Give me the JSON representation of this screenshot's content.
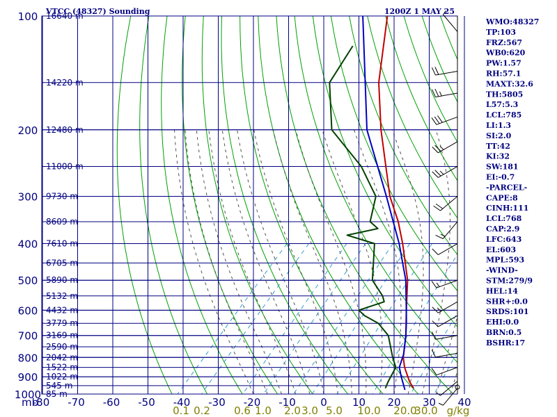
{
  "header": {
    "station": "VTCC (48327) Sounding",
    "datetime": "1200Z  1 MAY 25"
  },
  "chart_data": {
    "type": "skew-t",
    "pressure_unit_label": "mb",
    "pressure_levels": [
      100,
      200,
      300,
      400,
      500,
      600,
      700,
      800,
      900,
      1000
    ],
    "pressure_range": [
      100,
      1000
    ],
    "temperature_ticks": [
      -80,
      -70,
      -60,
      -50,
      -40,
      -30,
      -20,
      -10,
      0,
      10,
      20,
      30,
      40
    ],
    "mixing_ratio_labels": [
      "0.1",
      "0.2",
      "0.6",
      "1.0",
      "2.0",
      "3.0",
      "5.0",
      "10.0",
      "20.0",
      "30.0"
    ],
    "mixing_ratio_unit": "g/kg",
    "height_labels": [
      {
        "p": 100,
        "h": "16640 m"
      },
      {
        "p": 150,
        "h": "14220 m"
      },
      {
        "p": 200,
        "h": "12480 m"
      },
      {
        "p": 250,
        "h": "11000 m"
      },
      {
        "p": 300,
        "h": "9730 m"
      },
      {
        "p": 350,
        "h": "8609 m"
      },
      {
        "p": 400,
        "h": "7610 m"
      },
      {
        "p": 450,
        "h": "6705 m"
      },
      {
        "p": 500,
        "h": "5890 m"
      },
      {
        "p": 550,
        "h": "5132 m"
      },
      {
        "p": 600,
        "h": "4432 m"
      },
      {
        "p": 650,
        "h": "3779 m"
      },
      {
        "p": 700,
        "h": "3169 m"
      },
      {
        "p": 750,
        "h": "2590 m"
      },
      {
        "p": 800,
        "h": "2042 m"
      },
      {
        "p": 850,
        "h": "1522 m"
      },
      {
        "p": 900,
        "h": "1022 m"
      },
      {
        "p": 950,
        "h": "545 m"
      },
      {
        "p": 1000,
        "h": "85 m"
      }
    ],
    "series": [
      {
        "name": "temperature",
        "color": "#c00000",
        "points": [
          [
            965,
            24
          ],
          [
            925,
            21
          ],
          [
            850,
            16
          ],
          [
            800,
            13
          ],
          [
            700,
            8
          ],
          [
            600,
            1.5
          ],
          [
            500,
            -6
          ],
          [
            400,
            -17
          ],
          [
            350,
            -24
          ],
          [
            300,
            -33
          ],
          [
            250,
            -42
          ],
          [
            200,
            -53
          ],
          [
            150,
            -66
          ],
          [
            100,
            -81
          ]
        ]
      },
      {
        "name": "dewpoint",
        "color": "#004000",
        "points": [
          [
            965,
            16
          ],
          [
            925,
            15
          ],
          [
            850,
            13.5
          ],
          [
            800,
            10
          ],
          [
            700,
            3
          ],
          [
            650,
            -3
          ],
          [
            620,
            -9
          ],
          [
            600,
            -12
          ],
          [
            570,
            -7
          ],
          [
            550,
            -9
          ],
          [
            500,
            -16
          ],
          [
            400,
            -25
          ],
          [
            380,
            -35
          ],
          [
            365,
            -28
          ],
          [
            350,
            -32
          ],
          [
            300,
            -37
          ],
          [
            250,
            -49
          ],
          [
            200,
            -67
          ],
          [
            150,
            -80
          ],
          [
            120,
            -83
          ]
        ]
      },
      {
        "name": "parcel",
        "color": "#0000c0",
        "points": [
          [
            975,
            22
          ],
          [
            900,
            17.5
          ],
          [
            850,
            14.5
          ],
          [
            785,
            12.3
          ],
          [
            700,
            8
          ],
          [
            643,
            4.5
          ],
          [
            600,
            1.5
          ],
          [
            500,
            -6.5
          ],
          [
            400,
            -18
          ],
          [
            300,
            -34
          ],
          [
            200,
            -57
          ],
          [
            100,
            -88
          ]
        ]
      }
    ],
    "wind_barbs": [
      {
        "p": 110,
        "dir": 320,
        "spd": 5
      },
      {
        "p": 140,
        "dir": 260,
        "spd": 20
      },
      {
        "p": 160,
        "dir": 260,
        "spd": 25
      },
      {
        "p": 185,
        "dir": 250,
        "spd": 30
      },
      {
        "p": 215,
        "dir": 240,
        "spd": 25
      },
      {
        "p": 250,
        "dir": 240,
        "spd": 25
      },
      {
        "p": 300,
        "dir": 230,
        "spd": 20
      },
      {
        "p": 350,
        "dir": 220,
        "spd": 15
      },
      {
        "p": 400,
        "dir": 240,
        "spd": 10
      },
      {
        "p": 500,
        "dir": 250,
        "spd": 15
      },
      {
        "p": 570,
        "dir": 240,
        "spd": 15
      },
      {
        "p": 620,
        "dir": 240,
        "spd": 10
      },
      {
        "p": 700,
        "dir": 260,
        "spd": 10
      },
      {
        "p": 780,
        "dir": 260,
        "spd": 10
      },
      {
        "p": 850,
        "dir": 250,
        "spd": 10
      },
      {
        "p": 925,
        "dir": 230,
        "spd": 5
      },
      {
        "p": 965,
        "dir": 220,
        "spd": 5
      }
    ],
    "indices": [
      "WMO:48327",
      "TP:103",
      "FRZ:567",
      "WB0:620",
      "PW:1.57",
      "RH:57.1",
      "MAXT:32.6",
      "TH:5805",
      "L57:5.3",
      "LCL:785",
      "LI:1.3",
      "SI:2.0",
      "TT:42",
      "KI:32",
      "SW:181",
      "EI:-0.7",
      "-PARCEL-",
      "CAPE:8",
      "CINH:111",
      "LCL:768",
      "CAP:2.9",
      "LFC:643",
      "EL:603",
      "MPL:593",
      "-WIND-",
      "STM:279/9",
      "HEL:14",
      "SHR+:0.0",
      "SRDS:101",
      "EHI:0.0",
      "BRN:0.5",
      "BSHR:17"
    ],
    "colors": {
      "grid": "#000080",
      "dry_adiabat": "#00a000",
      "moist_adiabat": "#505050",
      "mixing_ratio": "#3399cc"
    }
  }
}
